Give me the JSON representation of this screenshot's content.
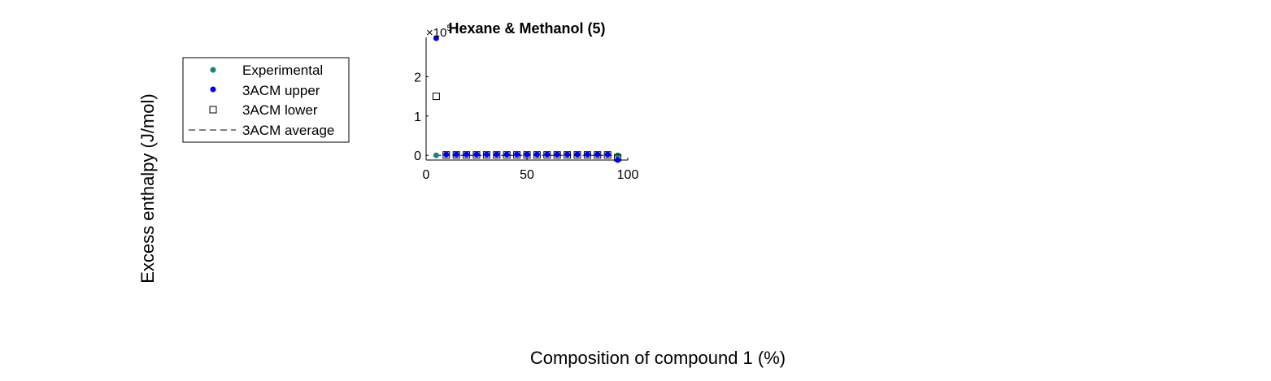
{
  "figure": {
    "ylabel": "Excess enthalpy (J/mol)",
    "xlabel": "Composition of compound 1 (%)"
  },
  "chart_data": {
    "type": "scatter",
    "title": "Hexane & Methanol (5)",
    "exponent_label": "×10",
    "exponent_value": "5",
    "xlim": [
      0,
      100
    ],
    "ylim": [
      -0.12,
      3.0
    ],
    "xticks": [
      0,
      50,
      100
    ],
    "xtick_labels": [
      "0",
      "50",
      "100"
    ],
    "yticks": [
      0,
      1,
      2
    ],
    "ytick_labels": [
      "0",
      "1",
      "2"
    ],
    "grid": false,
    "legend_position": "outside-left",
    "series": [
      {
        "name": "Experimental",
        "marker": "filled-circle",
        "color": "#1a8080",
        "x": [
          5,
          95
        ],
        "y": [
          0,
          0
        ]
      },
      {
        "name": "3ACM upper",
        "marker": "filled-circle",
        "color": "#0000ee",
        "x": [
          5,
          10,
          15,
          20,
          25,
          30,
          35,
          40,
          45,
          50,
          55,
          60,
          65,
          70,
          75,
          80,
          85,
          90,
          95
        ],
        "y": [
          2.98,
          0.02,
          0.02,
          0.02,
          0.02,
          0.02,
          0.02,
          0.02,
          0.02,
          0.02,
          0.02,
          0.02,
          0.02,
          0.02,
          0.02,
          0.02,
          0.02,
          0.02,
          -0.12
        ]
      },
      {
        "name": "3ACM lower",
        "marker": "open-square",
        "color": "#000000",
        "x": [
          5,
          10,
          15,
          20,
          25,
          30,
          35,
          40,
          45,
          50,
          55,
          60,
          65,
          70,
          75,
          80,
          85,
          90,
          95
        ],
        "y": [
          1.5,
          0.01,
          0.01,
          0.01,
          0.01,
          0.01,
          0.01,
          0.01,
          0.01,
          0.01,
          0.01,
          0.01,
          0.01,
          0.01,
          0.01,
          0.01,
          0.01,
          0.01,
          -0.06
        ]
      },
      {
        "name": "3ACM average",
        "marker": "dashed-line",
        "color": "#000000",
        "x": [
          5,
          10,
          15,
          20,
          25,
          30,
          35,
          40,
          45,
          50,
          55,
          60,
          65,
          70,
          75,
          80,
          85,
          90,
          95
        ],
        "y": [
          0.0,
          0.0,
          0.0,
          0.0,
          0.0,
          0.0,
          0.0,
          0.0,
          0.0,
          0.0,
          0.0,
          0.0,
          0.0,
          0.0,
          0.0,
          0.0,
          0.0,
          0.0,
          0.0
        ]
      }
    ]
  }
}
